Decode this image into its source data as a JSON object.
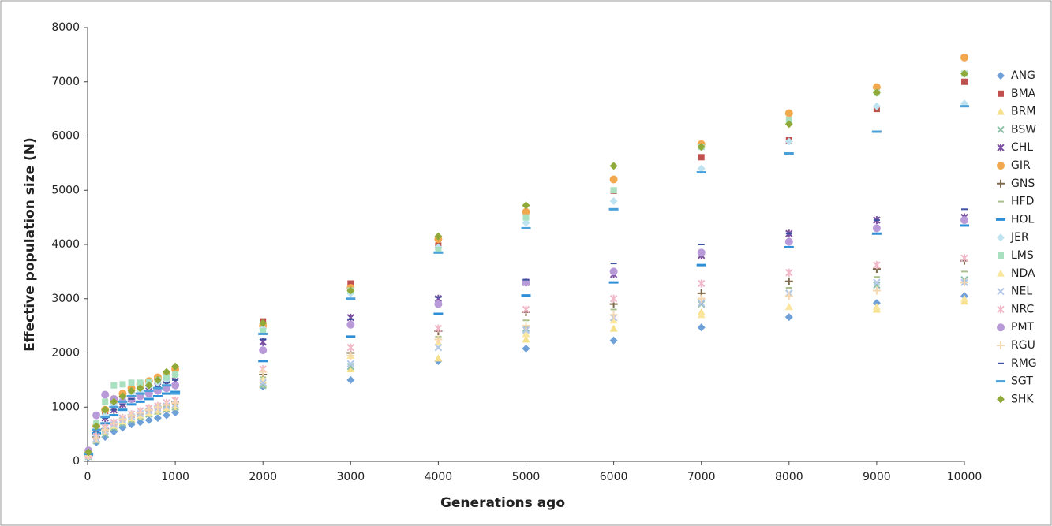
{
  "chart_data": {
    "type": "scatter",
    "xlabel": "Generations ago",
    "ylabel": "Effective population size (N)",
    "x": [
      10,
      100,
      200,
      300,
      400,
      500,
      600,
      700,
      800,
      900,
      1000,
      2000,
      3000,
      4000,
      5000,
      6000,
      7000,
      8000,
      9000,
      10000
    ],
    "xlim": [
      0,
      10000
    ],
    "xticks": [
      0,
      1000,
      2000,
      3000,
      4000,
      5000,
      6000,
      7000,
      8000,
      9000,
      10000
    ],
    "ylim": [
      0,
      8000
    ],
    "yticks": [
      0,
      1000,
      2000,
      3000,
      4000,
      5000,
      6000,
      7000,
      8000
    ],
    "grid": false,
    "legend": "right",
    "series": [
      {
        "name": "ANG",
        "color": "#6fa0d8",
        "marker": "diamond",
        "values": [
          80,
          350,
          450,
          550,
          620,
          680,
          720,
          760,
          800,
          850,
          900,
          1380,
          1500,
          1850,
          2080,
          2230,
          2470,
          2660,
          2920,
          3050
        ]
      },
      {
        "name": "BMA",
        "color": "#c0504d",
        "marker": "square",
        "values": [
          150,
          600,
          900,
          1100,
          1200,
          1300,
          1400,
          1450,
          1500,
          1600,
          1700,
          2580,
          3280,
          3980,
          4520,
          4990,
          5610,
          5920,
          6500,
          7000
        ]
      },
      {
        "name": "BRM",
        "color": "#f6e08a",
        "marker": "triangle",
        "values": [
          100,
          400,
          550,
          650,
          720,
          780,
          830,
          880,
          920,
          970,
          1000,
          1420,
          1700,
          1900,
          2250,
          2450,
          2750,
          2850,
          2800,
          2950
        ]
      },
      {
        "name": "BSW",
        "color": "#8fc0a8",
        "marker": "x",
        "values": [
          90,
          380,
          500,
          620,
          700,
          760,
          820,
          870,
          920,
          960,
          1000,
          1400,
          1750,
          2100,
          2450,
          2650,
          2900,
          3100,
          3250,
          3350
        ]
      },
      {
        "name": "CHL",
        "color": "#7a4fa0",
        "marker": "star",
        "values": [
          130,
          550,
          800,
          950,
          1050,
          1150,
          1250,
          1300,
          1380,
          1420,
          1480,
          2200,
          2650,
          3000,
          3300,
          3450,
          3800,
          4200,
          4450,
          4500
        ]
      },
      {
        "name": "GIR",
        "color": "#f2a84f",
        "marker": "circle",
        "values": [
          160,
          650,
          950,
          1150,
          1250,
          1350,
          1420,
          1480,
          1550,
          1620,
          1700,
          2500,
          3200,
          4100,
          4600,
          5200,
          5850,
          6420,
          6900,
          7450
        ]
      },
      {
        "name": "GNS",
        "color": "#7d6a4a",
        "marker": "plus",
        "values": [
          110,
          450,
          600,
          700,
          780,
          850,
          900,
          950,
          1000,
          1050,
          1100,
          1600,
          2000,
          2400,
          2750,
          2900,
          3100,
          3320,
          3550,
          3700
        ]
      },
      {
        "name": "HFD",
        "color": "#a8bf8a",
        "marker": "dash",
        "values": [
          100,
          420,
          580,
          680,
          760,
          820,
          880,
          930,
          980,
          1020,
          1060,
          1550,
          1950,
          2300,
          2600,
          2800,
          3000,
          3200,
          3400,
          3500
        ]
      },
      {
        "name": "HOL",
        "color": "#2e8fd6",
        "marker": "bar",
        "values": [
          120,
          520,
          700,
          850,
          950,
          1050,
          1100,
          1150,
          1200,
          1250,
          1280,
          1850,
          2300,
          2720,
          3060,
          3300,
          3620,
          3950,
          4200,
          4350
        ]
      },
      {
        "name": "JER",
        "color": "#bfe3f0",
        "marker": "diamond",
        "values": [
          140,
          600,
          850,
          1050,
          1150,
          1250,
          1300,
          1380,
          1450,
          1500,
          1600,
          2450,
          3100,
          3950,
          4400,
          4800,
          5400,
          5900,
          6550,
          6600
        ]
      },
      {
        "name": "LMS",
        "color": "#a8e0c0",
        "marker": "square",
        "values": [
          150,
          700,
          1100,
          1400,
          1420,
          1450,
          1450,
          1460,
          1500,
          1550,
          1600,
          2400,
          3150,
          3900,
          4500,
          5000,
          5800,
          6300,
          6800,
          7150
        ]
      },
      {
        "name": "NDA",
        "color": "#fbe6a0",
        "marker": "triangle",
        "values": [
          100,
          400,
          560,
          660,
          740,
          800,
          850,
          900,
          950,
          990,
          1030,
          1500,
          1950,
          2200,
          2350,
          2600,
          2700,
          2850,
          2850,
          3000
        ]
      },
      {
        "name": "NEL",
        "color": "#b6c8e8",
        "marker": "x",
        "values": [
          100,
          420,
          560,
          680,
          760,
          820,
          880,
          930,
          980,
          1020,
          1050,
          1450,
          1800,
          2100,
          2420,
          2650,
          2920,
          3100,
          3300,
          3300
        ]
      },
      {
        "name": "NRC",
        "color": "#f0b8c8",
        "marker": "star",
        "values": [
          110,
          460,
          620,
          720,
          800,
          870,
          930,
          980,
          1020,
          1080,
          1120,
          1700,
          2100,
          2450,
          2800,
          3000,
          3280,
          3480,
          3620,
          3750
        ]
      },
      {
        "name": "PMT",
        "color": "#b89ad8",
        "marker": "circle",
        "values": [
          200,
          850,
          1230,
          1150,
          1100,
          1150,
          1200,
          1250,
          1300,
          1350,
          1400,
          2050,
          2520,
          2900,
          3300,
          3500,
          3850,
          4050,
          4300,
          4450
        ]
      },
      {
        "name": "RGU",
        "color": "#f6d8b0",
        "marker": "plus",
        "values": [
          100,
          430,
          580,
          700,
          780,
          850,
          900,
          950,
          1000,
          1040,
          1080,
          1650,
          1950,
          2250,
          2500,
          2700,
          3000,
          3050,
          3150,
          3300
        ]
      },
      {
        "name": "RMG",
        "color": "#3a52a0",
        "marker": "dash",
        "values": [
          130,
          560,
          800,
          950,
          1050,
          1150,
          1250,
          1300,
          1380,
          1450,
          1500,
          2250,
          2620,
          3030,
          3350,
          3650,
          4000,
          4200,
          4450,
          4650
        ]
      },
      {
        "name": "SGT",
        "color": "#4aa0d8",
        "marker": "bar",
        "values": [
          140,
          580,
          820,
          1000,
          1100,
          1200,
          1250,
          1300,
          1350,
          1400,
          1250,
          2350,
          3000,
          3850,
          4300,
          4650,
          5330,
          5680,
          6080,
          6550
        ]
      },
      {
        "name": "SHK",
        "color": "#8faa3a",
        "marker": "diamond",
        "values": [
          170,
          650,
          950,
          1100,
          1200,
          1300,
          1350,
          1400,
          1500,
          1650,
          1750,
          2550,
          3150,
          4150,
          4720,
          5450,
          5800,
          6220,
          6800,
          7150
        ]
      }
    ]
  }
}
